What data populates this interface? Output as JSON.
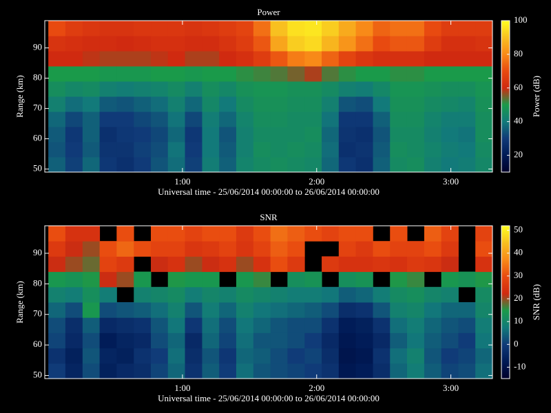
{
  "chart_data": [
    {
      "type": "heatmap",
      "title": "Power",
      "xlabel": "Universal time - 25/06/2014 00:00:00 to 26/06/2014 00:00:00",
      "ylabel": "Range (km)",
      "colorbar_label": "Power (dB)",
      "x": [
        0.064,
        0.191,
        0.319,
        0.446,
        0.573,
        0.701,
        0.828,
        0.955,
        1.082,
        1.21,
        1.337,
        1.464,
        1.592,
        1.719,
        1.846,
        1.974,
        2.101,
        2.228,
        2.355,
        2.483,
        2.61,
        2.737,
        2.865,
        2.992,
        3.119,
        3.246
      ],
      "y": [
        51.5,
        56.5,
        61.5,
        66.5,
        71.5,
        76.5,
        81.5,
        86.5,
        91.5,
        96.5
      ],
      "values": [
        [
          36,
          31,
          37,
          29,
          27,
          30,
          34,
          38,
          31,
          41,
          36,
          43,
          45,
          46,
          45,
          44,
          37,
          29,
          27,
          36,
          45,
          46,
          42,
          40,
          41,
          44
        ],
        [
          34,
          30,
          35,
          28,
          28,
          31,
          33,
          39,
          30,
          40,
          35,
          42,
          46,
          45,
          46,
          45,
          38,
          27,
          28,
          35,
          46,
          45,
          43,
          41,
          40,
          45
        ],
        [
          35,
          29,
          36,
          27,
          29,
          30,
          32,
          37,
          29,
          40,
          34,
          42,
          45,
          45,
          45,
          46,
          37,
          28,
          27,
          34,
          45,
          45,
          42,
          40,
          39,
          46
        ],
        [
          37,
          32,
          36,
          30,
          30,
          32,
          34,
          39,
          32,
          41,
          37,
          43,
          46,
          46,
          45,
          45,
          39,
          29,
          29,
          36,
          46,
          46,
          43,
          41,
          41,
          46
        ],
        [
          42,
          38,
          40,
          35,
          34,
          36,
          38,
          42,
          37,
          44,
          40,
          45,
          47,
          47,
          46,
          46,
          42,
          34,
          33,
          40,
          47,
          47,
          45,
          44,
          43,
          47
        ],
        [
          46,
          44,
          45,
          42,
          41,
          42,
          43,
          45,
          42,
          46,
          44,
          47,
          48,
          48,
          47,
          47,
          45,
          42,
          41,
          44,
          48,
          48,
          47,
          46,
          46,
          48
        ],
        [
          50,
          50,
          50,
          49,
          49,
          49,
          50,
          50,
          49,
          50,
          50,
          51,
          52,
          53,
          55,
          58,
          53,
          51,
          50,
          50,
          51,
          51,
          50,
          50,
          50,
          50
        ],
        [
          60,
          60,
          59,
          58,
          58,
          58,
          59,
          60,
          58,
          58,
          60,
          62,
          66,
          72,
          78,
          80,
          74,
          68,
          64,
          62,
          62,
          62,
          60,
          60,
          60,
          60
        ],
        [
          63,
          62,
          61,
          61,
          60,
          61,
          62,
          62,
          61,
          61,
          63,
          66,
          72,
          85,
          92,
          94,
          88,
          82,
          76,
          70,
          72,
          72,
          66,
          62,
          62,
          63
        ],
        [
          70,
          66,
          64,
          63,
          63,
          64,
          64,
          64,
          63,
          64,
          66,
          68,
          76,
          90,
          95,
          96,
          92,
          86,
          80,
          74,
          76,
          76,
          70,
          66,
          66,
          66
        ]
      ],
      "xlim": [
        -0.026,
        3.31
      ],
      "ylim": [
        49,
        99
      ],
      "xticks": [
        {
          "value": 1,
          "label": "1:00"
        },
        {
          "value": 2,
          "label": "2:00"
        },
        {
          "value": 3,
          "label": "3:00"
        }
      ],
      "yticks": [
        50,
        60,
        70,
        80,
        90
      ],
      "clim": [
        10,
        100
      ],
      "cticks": [
        20,
        40,
        60,
        80,
        100
      ],
      "colormap": [
        "#00002a",
        "#001a55",
        "#103a78",
        "#127a7a",
        "#1a9a4a",
        "#d02a10",
        "#e84a10",
        "#f88a18",
        "#f8c020",
        "#ffff20"
      ]
    },
    {
      "type": "heatmap",
      "title": "SNR",
      "xlabel": "Universal time - 25/06/2014 00:00:00 to 26/06/2014 00:00:00",
      "ylabel": "Range (km)",
      "colorbar_label": "SNR (dB)",
      "x": [
        0.064,
        0.191,
        0.319,
        0.446,
        0.573,
        0.701,
        0.828,
        0.955,
        1.082,
        1.21,
        1.337,
        1.464,
        1.592,
        1.719,
        1.846,
        1.974,
        2.101,
        2.228,
        2.355,
        2.483,
        2.61,
        2.737,
        2.865,
        2.992,
        3.119,
        3.246
      ],
      "y": [
        51.5,
        56.5,
        61.5,
        66.5,
        71.5,
        76.5,
        81.5,
        86.5,
        91.5,
        96.5
      ],
      "values": [
        [
          0,
          -5,
          2,
          -6,
          -4,
          -3,
          1,
          5,
          -2,
          4,
          0,
          6,
          3,
          2,
          1,
          0,
          -2,
          -8,
          -7,
          -3,
          5,
          8,
          4,
          1,
          2,
          6
        ],
        [
          -2,
          -6,
          3,
          -5,
          -6,
          -2,
          0,
          6,
          -3,
          3,
          -1,
          5,
          4,
          2,
          0,
          1,
          -3,
          -9,
          -8,
          -2,
          6,
          9,
          3,
          0,
          1,
          5
        ],
        [
          1,
          -4,
          2,
          -7,
          -5,
          -4,
          2,
          5,
          -4,
          5,
          1,
          6,
          3,
          3,
          2,
          0,
          -4,
          -8,
          -7,
          -4,
          4,
          7,
          4,
          2,
          0,
          7
        ],
        [
          2,
          -3,
          4,
          -4,
          -3,
          -2,
          3,
          7,
          -1,
          6,
          2,
          7,
          5,
          3,
          2,
          2,
          -2,
          -7,
          -6,
          -2,
          6,
          8,
          5,
          3,
          2,
          8
        ],
        [
          5,
          2,
          14,
          2,
          3,
          4,
          6,
          9,
          3,
          8,
          5,
          9,
          7,
          6,
          5,
          4,
          2,
          -3,
          -2,
          3,
          9,
          10,
          7,
          5,
          5,
          10
        ],
        [
          9,
          8,
          12,
          8,
          null,
          9,
          10,
          11,
          8,
          10,
          9,
          11,
          10,
          9,
          8,
          8,
          7,
          4,
          5,
          8,
          11,
          12,
          10,
          9,
          null,
          11
        ],
        [
          14,
          13,
          15,
          22,
          20,
          14,
          null,
          15,
          14,
          14,
          null,
          14,
          16,
          null,
          12,
          13,
          null,
          12,
          13,
          null,
          15,
          16,
          null,
          14,
          13,
          15
        ],
        [
          22,
          20,
          18,
          28,
          26,
          null,
          22,
          24,
          20,
          22,
          24,
          20,
          24,
          30,
          26,
          null,
          26,
          24,
          24,
          25,
          24,
          26,
          25,
          22,
          null,
          24
        ],
        [
          26,
          22,
          20,
          30,
          33,
          30,
          28,
          28,
          25,
          26,
          28,
          25,
          28,
          32,
          30,
          null,
          null,
          28,
          26,
          30,
          28,
          28,
          30,
          26,
          null,
          30
        ],
        [
          30,
          24,
          24,
          null,
          30,
          null,
          30,
          30,
          28,
          30,
          30,
          26,
          30,
          34,
          32,
          30,
          28,
          30,
          30,
          null,
          30,
          null,
          32,
          28,
          null,
          28
        ]
      ],
      "xlim": [
        -0.026,
        3.31
      ],
      "ylim": [
        49,
        99
      ],
      "xticks": [
        {
          "value": 1,
          "label": "1:00"
        },
        {
          "value": 2,
          "label": "2:00"
        },
        {
          "value": 3,
          "label": "3:00"
        }
      ],
      "yticks": [
        50,
        60,
        70,
        80,
        90
      ],
      "clim": [
        -15,
        52
      ],
      "cticks": [
        -10,
        0,
        10,
        20,
        30,
        40,
        50
      ],
      "colormap": [
        "#00002a",
        "#001a55",
        "#103a78",
        "#127a7a",
        "#1a9a4a",
        "#d02a10",
        "#e84a10",
        "#f88a18",
        "#f8c020",
        "#ffff20"
      ]
    }
  ]
}
